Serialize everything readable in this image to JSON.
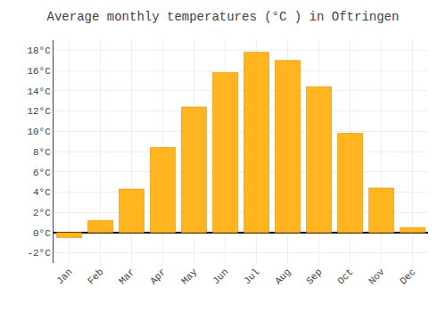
{
  "chart_data": {
    "type": "bar",
    "title": "Average monthly temperatures (°C ) in Oftringen",
    "categories": [
      "Jan",
      "Feb",
      "Mar",
      "Apr",
      "May",
      "Jun",
      "Jul",
      "Aug",
      "Sep",
      "Oct",
      "Nov",
      "Dec"
    ],
    "values": [
      -0.5,
      1.2,
      4.3,
      8.4,
      12.4,
      15.8,
      17.8,
      17.0,
      14.4,
      9.8,
      4.4,
      0.5
    ],
    "color": "#FFB420",
    "ylim": [
      -3,
      19
    ],
    "yticks": [
      {
        "value": -2,
        "label": "-2°C"
      },
      {
        "value": 0,
        "label": "0°C"
      },
      {
        "value": 2,
        "label": "2°C"
      },
      {
        "value": 4,
        "label": "4°C"
      },
      {
        "value": 6,
        "label": "6°C"
      },
      {
        "value": 8,
        "label": "8°C"
      },
      {
        "value": 10,
        "label": "10°C"
      },
      {
        "value": 12,
        "label": "12°C"
      },
      {
        "value": 14,
        "label": "14°C"
      },
      {
        "value": 16,
        "label": "16°C"
      },
      {
        "value": 18,
        "label": "18°C"
      }
    ],
    "grid": true
  }
}
